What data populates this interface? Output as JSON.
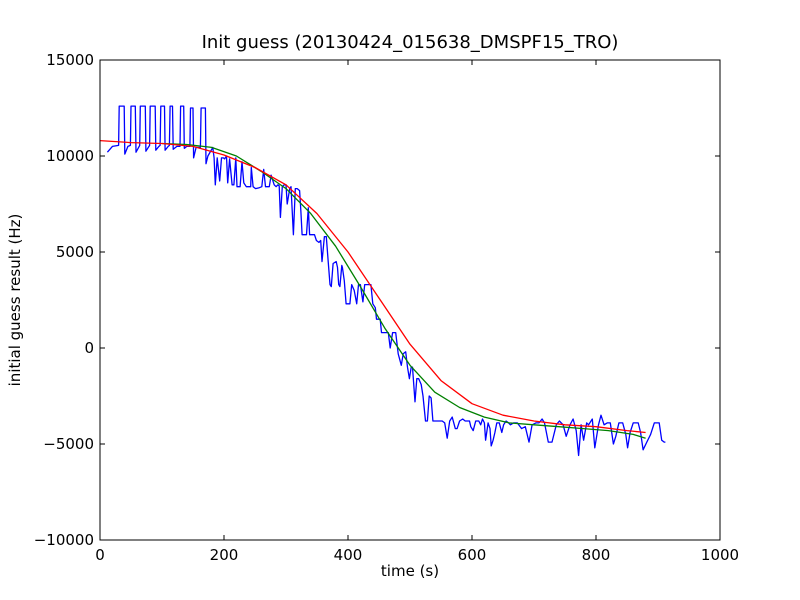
{
  "chart_data": {
    "type": "line",
    "title": "Init guess (20130424_015638_DMSPF15_TRO)",
    "xlabel": "time (s)",
    "ylabel": "initial guess result (Hz)",
    "xlim": [
      0,
      1000
    ],
    "ylim": [
      -10000,
      15000
    ],
    "xticks": [
      0,
      200,
      400,
      600,
      800,
      1000
    ],
    "yticks": [
      -10000,
      -5000,
      0,
      5000,
      10000,
      15000
    ],
    "xtick_labels": [
      "0",
      "200",
      "400",
      "600",
      "800",
      "1000"
    ],
    "ytick_labels": [
      "−10000",
      "−5000",
      "0",
      "5000",
      "10000",
      "15000"
    ],
    "grid": false,
    "legend": false,
    "series": [
      {
        "color": "#0000ff",
        "points": [
          [
            12,
            10200
          ],
          [
            20,
            10500
          ],
          [
            30,
            10550
          ],
          [
            31,
            12600
          ],
          [
            39,
            12600
          ],
          [
            40,
            10100
          ],
          [
            45,
            10500
          ],
          [
            49,
            10550
          ],
          [
            50,
            12600
          ],
          [
            57,
            12600
          ],
          [
            58,
            10200
          ],
          [
            64,
            10550
          ],
          [
            65,
            12600
          ],
          [
            73,
            12600
          ],
          [
            74,
            10250
          ],
          [
            80,
            10550
          ],
          [
            81,
            12600
          ],
          [
            89,
            12600
          ],
          [
            90,
            10300
          ],
          [
            95,
            10500
          ],
          [
            97,
            10550
          ],
          [
            98,
            12600
          ],
          [
            104,
            12600
          ],
          [
            105,
            10300
          ],
          [
            110,
            10500
          ],
          [
            112,
            10550
          ],
          [
            113,
            12600
          ],
          [
            117,
            12600
          ],
          [
            118,
            10350
          ],
          [
            124,
            10500
          ],
          [
            129,
            10500
          ],
          [
            130,
            12600
          ],
          [
            135,
            12600
          ],
          [
            136,
            10400
          ],
          [
            140,
            10500
          ],
          [
            145,
            10500
          ],
          [
            146,
            12500
          ],
          [
            150,
            12500
          ],
          [
            151,
            9900
          ],
          [
            155,
            10450
          ],
          [
            162,
            10450
          ],
          [
            163,
            12500
          ],
          [
            170,
            12500
          ],
          [
            171,
            9600
          ],
          [
            174,
            10000
          ],
          [
            182,
            10450
          ],
          [
            184,
            9900
          ],
          [
            186,
            8500
          ],
          [
            189,
            9900
          ],
          [
            193,
            8700
          ],
          [
            196,
            9900
          ],
          [
            199,
            9900
          ],
          [
            201,
            9850
          ],
          [
            204,
            10000
          ],
          [
            206,
            8600
          ],
          [
            209,
            9850
          ],
          [
            213,
            8500
          ],
          [
            216,
            8500
          ],
          [
            219,
            9900
          ],
          [
            221,
            8400
          ],
          [
            226,
            8400
          ],
          [
            229,
            9700
          ],
          [
            232,
            8600
          ],
          [
            236,
            8400
          ],
          [
            243,
            8400
          ],
          [
            244,
            9400
          ],
          [
            247,
            8400
          ],
          [
            251,
            8300
          ],
          [
            257,
            8350
          ],
          [
            261,
            8400
          ],
          [
            264,
            9300
          ],
          [
            267,
            8400
          ],
          [
            273,
            8400
          ],
          [
            276,
            9000
          ],
          [
            281,
            8500
          ],
          [
            284,
            8400
          ],
          [
            287,
            8500
          ],
          [
            289,
            8450
          ],
          [
            291,
            6800
          ],
          [
            294,
            8400
          ],
          [
            297,
            8500
          ],
          [
            300,
            8500
          ],
          [
            302,
            7500
          ],
          [
            306,
            8300
          ],
          [
            308,
            8400
          ],
          [
            312,
            5900
          ],
          [
            315,
            8300
          ],
          [
            318,
            8300
          ],
          [
            322,
            8200
          ],
          [
            324,
            7100
          ],
          [
            326,
            5900
          ],
          [
            333,
            5900
          ],
          [
            336,
            7300
          ],
          [
            338,
            5900
          ],
          [
            346,
            5900
          ],
          [
            349,
            5600
          ],
          [
            353,
            5500
          ],
          [
            356,
            5600
          ],
          [
            358,
            4500
          ],
          [
            362,
            5800
          ],
          [
            365,
            5800
          ],
          [
            368,
            4500
          ],
          [
            371,
            3300
          ],
          [
            373,
            3200
          ],
          [
            376,
            4400
          ],
          [
            381,
            4500
          ],
          [
            383,
            4200
          ],
          [
            385,
            3300
          ],
          [
            387,
            3200
          ],
          [
            390,
            4300
          ],
          [
            391,
            4200
          ],
          [
            394,
            3500
          ],
          [
            397,
            2300
          ],
          [
            403,
            2300
          ],
          [
            406,
            3300
          ],
          [
            410,
            3000
          ],
          [
            414,
            2300
          ],
          [
            417,
            3300
          ],
          [
            420,
            3300
          ],
          [
            424,
            2400
          ],
          [
            427,
            3300
          ],
          [
            437,
            3300
          ],
          [
            440,
            2300
          ],
          [
            444,
            2100
          ],
          [
            446,
            1500
          ],
          [
            452,
            1500
          ],
          [
            454,
            800
          ],
          [
            459,
            800
          ],
          [
            463,
            800
          ],
          [
            465,
            800
          ],
          [
            468,
            0
          ],
          [
            472,
            800
          ],
          [
            477,
            800
          ],
          [
            481,
            -300
          ],
          [
            486,
            -900
          ],
          [
            489,
            -300
          ],
          [
            493,
            -200
          ],
          [
            496,
            -1000
          ],
          [
            499,
            -1600
          ],
          [
            502,
            -1000
          ],
          [
            504,
            -1000
          ],
          [
            508,
            -2800
          ],
          [
            511,
            -1600
          ],
          [
            514,
            -1600
          ],
          [
            518,
            -1900
          ],
          [
            521,
            -2500
          ],
          [
            525,
            -3800
          ],
          [
            528,
            -3800
          ],
          [
            531,
            -2500
          ],
          [
            534,
            -2600
          ],
          [
            537,
            -3800
          ],
          [
            540,
            -3800
          ],
          [
            544,
            -3800
          ],
          [
            547,
            -3800
          ],
          [
            549,
            -3800
          ],
          [
            552,
            -3800
          ],
          [
            556,
            -3900
          ],
          [
            560,
            -4700
          ],
          [
            564,
            -3800
          ],
          [
            568,
            -3600
          ],
          [
            573,
            -4200
          ],
          [
            576,
            -4200
          ],
          [
            580,
            -3800
          ],
          [
            585,
            -3700
          ],
          [
            589,
            -3800
          ],
          [
            593,
            -3800
          ],
          [
            596,
            -3800
          ],
          [
            598,
            -4100
          ],
          [
            602,
            -4300
          ],
          [
            606,
            -3800
          ],
          [
            611,
            -3800
          ],
          [
            614,
            -4000
          ],
          [
            617,
            -3700
          ],
          [
            620,
            -3900
          ],
          [
            622,
            -4800
          ],
          [
            626,
            -3900
          ],
          [
            629,
            -4200
          ],
          [
            631,
            -5100
          ],
          [
            634,
            -4800
          ],
          [
            637,
            -4400
          ],
          [
            640,
            -3900
          ],
          [
            644,
            -3900
          ],
          [
            648,
            -4400
          ],
          [
            651,
            -4000
          ],
          [
            655,
            -3800
          ],
          [
            659,
            -3900
          ],
          [
            662,
            -4000
          ],
          [
            667,
            -3900
          ],
          [
            673,
            -3900
          ],
          [
            680,
            -4200
          ],
          [
            686,
            -4100
          ],
          [
            692,
            -4900
          ],
          [
            697,
            -4000
          ],
          [
            703,
            -3900
          ],
          [
            708,
            -3900
          ],
          [
            713,
            -3700
          ],
          [
            717,
            -3900
          ],
          [
            723,
            -4900
          ],
          [
            729,
            -4900
          ],
          [
            736,
            -4000
          ],
          [
            741,
            -3800
          ],
          [
            747,
            -4000
          ],
          [
            752,
            -4600
          ],
          [
            758,
            -4000
          ],
          [
            763,
            -3700
          ],
          [
            768,
            -4300
          ],
          [
            772,
            -5600
          ],
          [
            776,
            -4000
          ],
          [
            780,
            -4800
          ],
          [
            785,
            -3900
          ],
          [
            788,
            -4000
          ],
          [
            794,
            -3700
          ],
          [
            798,
            -5200
          ],
          [
            804,
            -4000
          ],
          [
            808,
            -3500
          ],
          [
            813,
            -4000
          ],
          [
            818,
            -3900
          ],
          [
            823,
            -3900
          ],
          [
            828,
            -5000
          ],
          [
            832,
            -4600
          ],
          [
            837,
            -3900
          ],
          [
            843,
            -3900
          ],
          [
            848,
            -4500
          ],
          [
            851,
            -5200
          ],
          [
            855,
            -4400
          ],
          [
            860,
            -3900
          ],
          [
            868,
            -3900
          ],
          [
            872,
            -4400
          ],
          [
            876,
            -5300
          ],
          [
            882,
            -4900
          ],
          [
            888,
            -4500
          ],
          [
            894,
            -3900
          ],
          [
            898,
            -3900
          ],
          [
            902,
            -3900
          ],
          [
            906,
            -4800
          ],
          [
            910,
            -4900
          ],
          [
            912,
            -4900
          ]
        ]
      },
      {
        "color": "#008000",
        "points": [
          [
            100,
            10650
          ],
          [
            140,
            10600
          ],
          [
            180,
            10450
          ],
          [
            220,
            10000
          ],
          [
            260,
            9200
          ],
          [
            300,
            8300
          ],
          [
            340,
            7000
          ],
          [
            380,
            5300
          ],
          [
            420,
            3200
          ],
          [
            460,
            1000
          ],
          [
            500,
            -900
          ],
          [
            540,
            -2300
          ],
          [
            580,
            -3100
          ],
          [
            620,
            -3600
          ],
          [
            660,
            -3900
          ],
          [
            700,
            -4000
          ],
          [
            740,
            -4100
          ],
          [
            780,
            -4200
          ],
          [
            820,
            -4300
          ],
          [
            860,
            -4500
          ],
          [
            880,
            -4700
          ]
        ]
      },
      {
        "color": "#ff0000",
        "points": [
          [
            0,
            10800
          ],
          [
            50,
            10700
          ],
          [
            100,
            10650
          ],
          [
            150,
            10500
          ],
          [
            200,
            10050
          ],
          [
            250,
            9400
          ],
          [
            300,
            8500
          ],
          [
            350,
            7000
          ],
          [
            400,
            5000
          ],
          [
            450,
            2600
          ],
          [
            500,
            200
          ],
          [
            550,
            -1700
          ],
          [
            600,
            -2900
          ],
          [
            650,
            -3500
          ],
          [
            700,
            -3800
          ],
          [
            750,
            -4000
          ],
          [
            800,
            -4100
          ],
          [
            850,
            -4300
          ],
          [
            880,
            -4400
          ]
        ]
      }
    ]
  }
}
